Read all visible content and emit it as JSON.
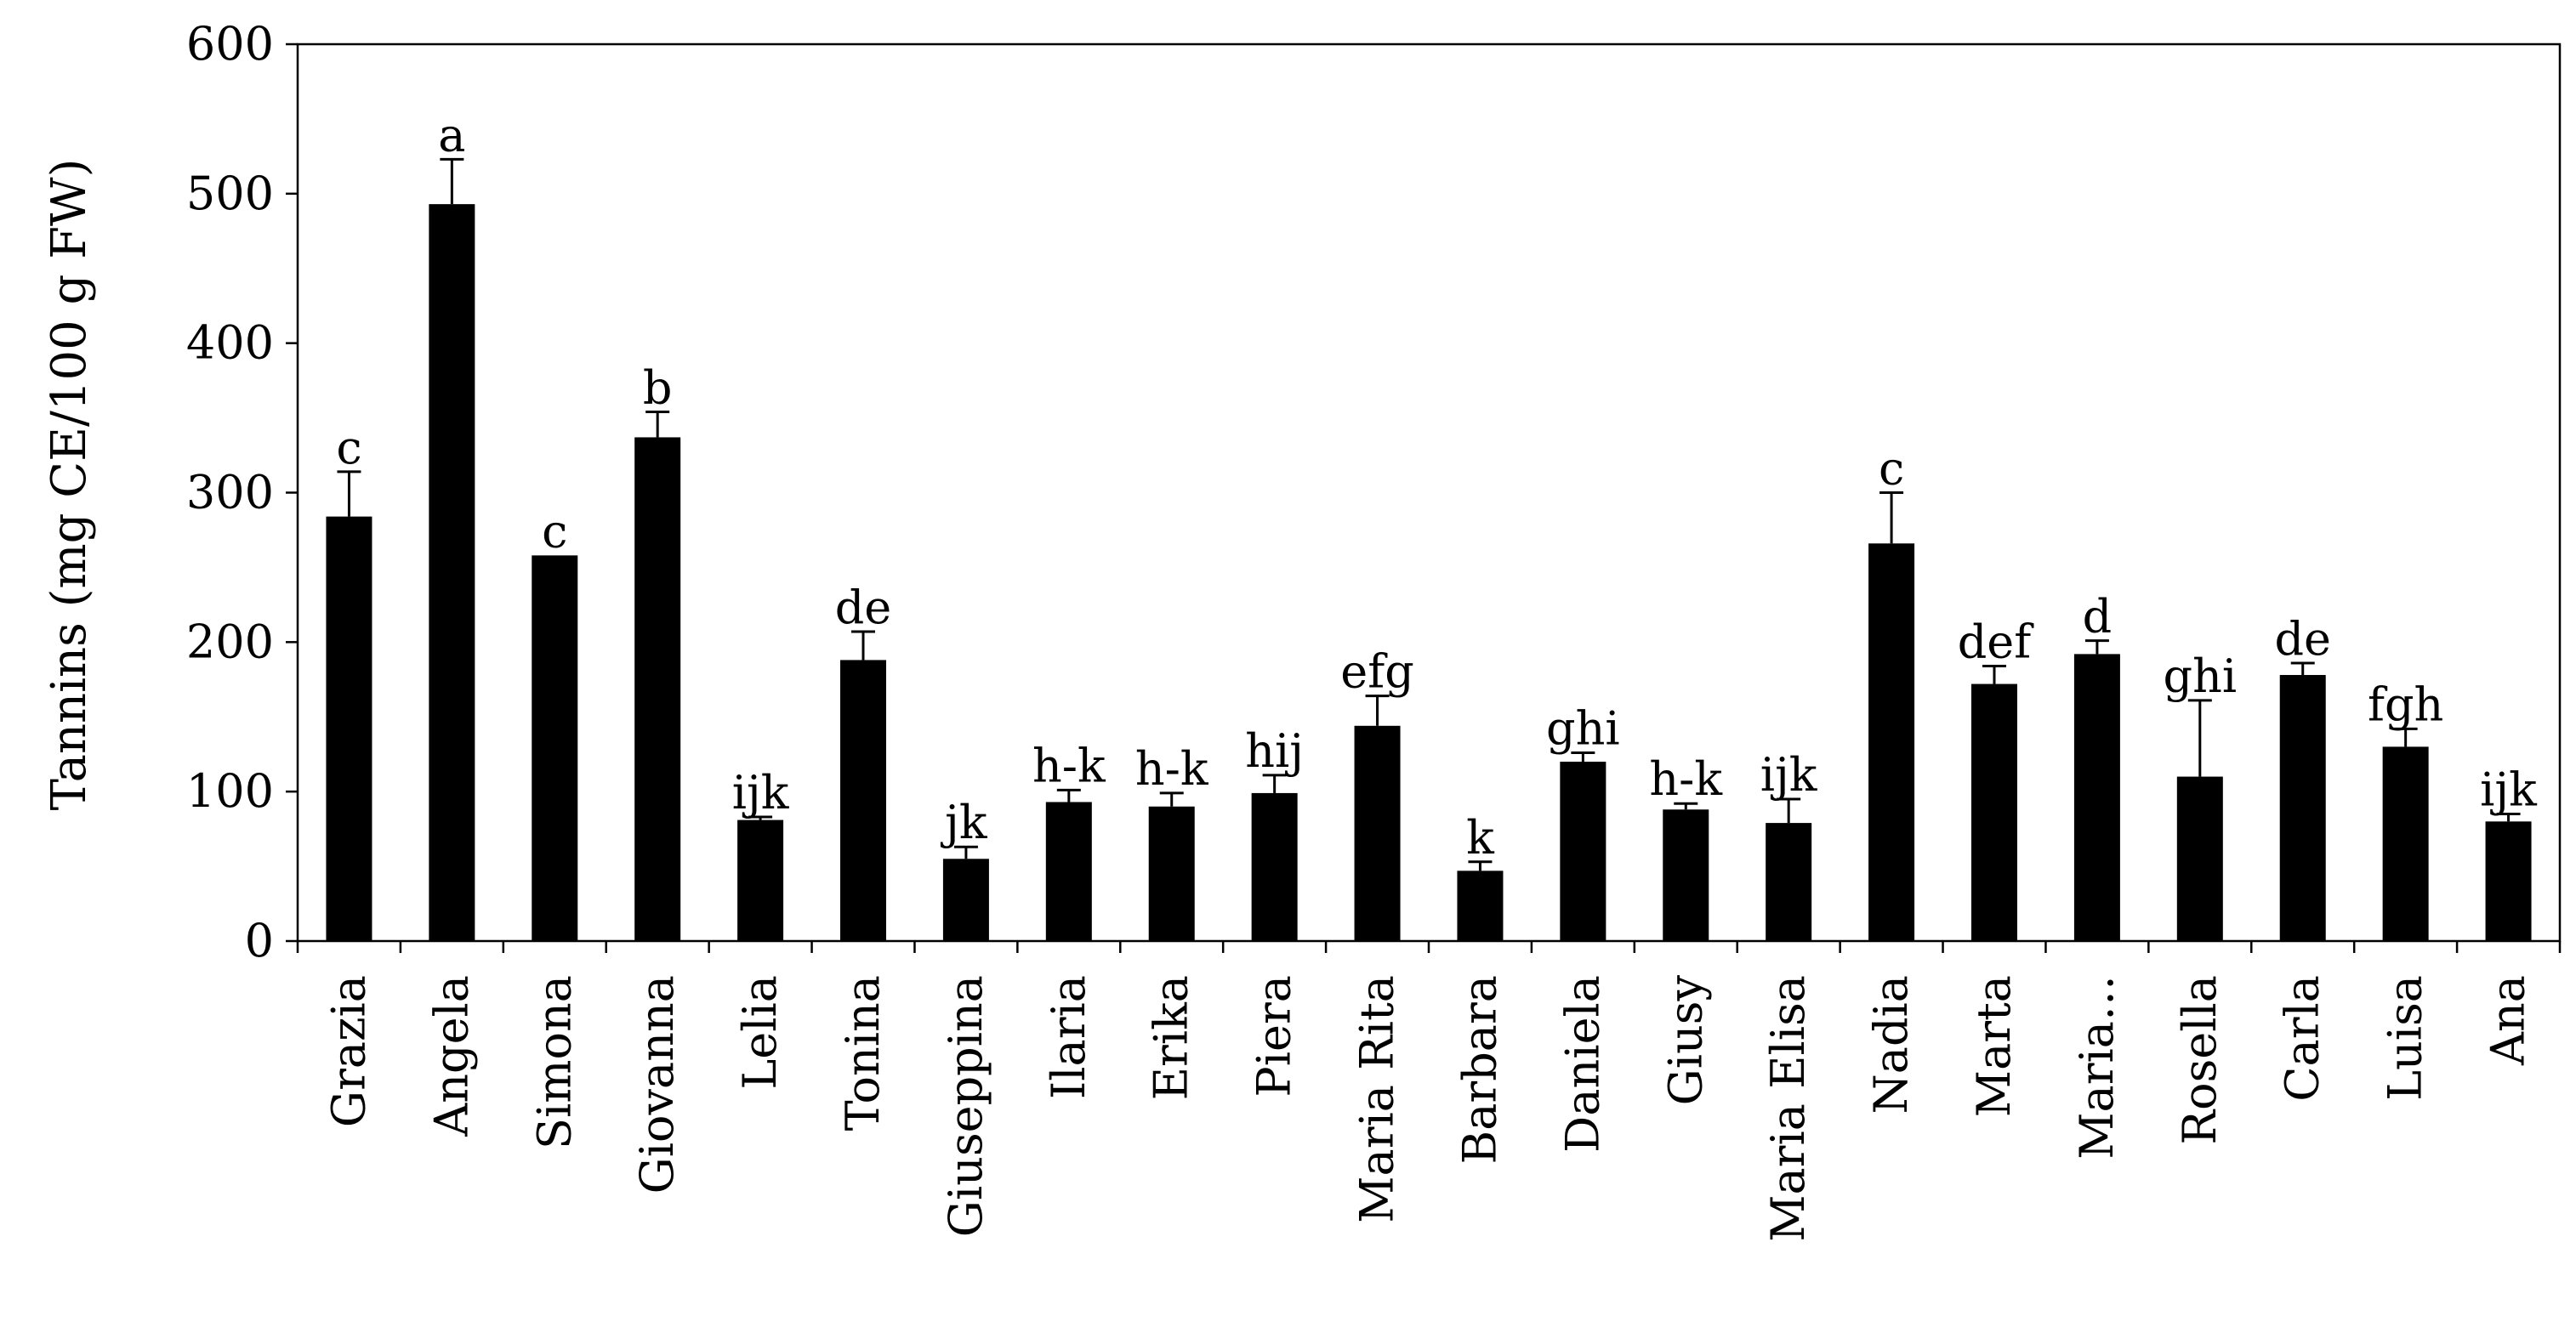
{
  "chart_data": {
    "type": "bar",
    "ylabel": "Tannins (mg CE/100 g FW)",
    "xlabel": "",
    "ylim": [
      0,
      600
    ],
    "yticks": [
      0,
      100,
      200,
      300,
      400,
      500,
      600
    ],
    "grid": false,
    "legend": "none",
    "bar_color": "#000000",
    "categories": [
      "Grazia",
      "Angela",
      "Simona",
      "Giovanna",
      "Lelia",
      "Tonina",
      "Giuseppina",
      "Ilaria",
      "Erika",
      "Piera",
      "Maria Rita",
      "Barbara",
      "Daniela",
      "Giusy",
      "Maria Elisa",
      "Nadia",
      "Marta",
      "Maria…",
      "Rosella",
      "Carla",
      "Luisa",
      "Ana"
    ],
    "values": [
      284,
      493,
      258,
      337,
      81,
      188,
      55,
      93,
      90,
      99,
      144,
      47,
      120,
      88,
      79,
      266,
      172,
      192,
      110,
      178,
      130,
      80
    ],
    "errors": [
      30,
      30,
      0,
      17,
      2,
      19,
      8,
      8,
      9,
      12,
      20,
      6,
      6,
      4,
      16,
      34,
      12,
      9,
      51,
      8,
      12,
      5
    ],
    "significance": [
      "c",
      "a",
      "c",
      "b",
      "ijk",
      "de",
      "jk",
      "h-k",
      "h-k",
      "hij",
      "efg",
      "k",
      "ghi",
      "h-k",
      "ijk",
      "c",
      "def",
      "d",
      "ghi",
      "de",
      "fgh",
      "ijk"
    ]
  }
}
